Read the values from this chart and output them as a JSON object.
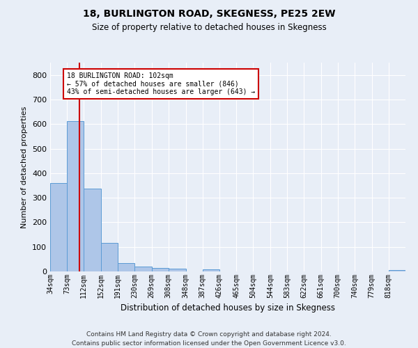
{
  "title": "18, BURLINGTON ROAD, SKEGNESS, PE25 2EW",
  "subtitle": "Size of property relative to detached houses in Skegness",
  "xlabel": "Distribution of detached houses by size in Skegness",
  "ylabel": "Number of detached properties",
  "footer_line1": "Contains HM Land Registry data © Crown copyright and database right 2024.",
  "footer_line2": "Contains public sector information licensed under the Open Government Licence v3.0.",
  "bin_labels": [
    "34sqm",
    "73sqm",
    "112sqm",
    "152sqm",
    "191sqm",
    "230sqm",
    "269sqm",
    "308sqm",
    "348sqm",
    "387sqm",
    "426sqm",
    "465sqm",
    "504sqm",
    "544sqm",
    "583sqm",
    "622sqm",
    "661sqm",
    "700sqm",
    "740sqm",
    "779sqm",
    "818sqm"
  ],
  "bar_values": [
    360,
    611,
    338,
    115,
    35,
    20,
    14,
    10,
    0,
    8,
    0,
    0,
    0,
    0,
    0,
    0,
    0,
    0,
    0,
    0,
    7
  ],
  "bar_color": "#aec6e8",
  "bar_edgecolor": "#5b9bd5",
  "background_color": "#e8eef7",
  "grid_color": "#ffffff",
  "vline_x": 102,
  "vline_color": "#cc0000",
  "annotation_text": "18 BURLINGTON ROAD: 102sqm\n← 57% of detached houses are smaller (846)\n43% of semi-detached houses are larger (643) →",
  "annotation_box_color": "#ffffff",
  "annotation_box_edgecolor": "#cc0000",
  "ylim": [
    0,
    850
  ],
  "yticks": [
    0,
    100,
    200,
    300,
    400,
    500,
    600,
    700,
    800
  ],
  "bin_edges": [
    34,
    73,
    112,
    152,
    191,
    230,
    269,
    308,
    348,
    387,
    426,
    465,
    504,
    544,
    583,
    622,
    661,
    700,
    740,
    779,
    818,
    857
  ]
}
